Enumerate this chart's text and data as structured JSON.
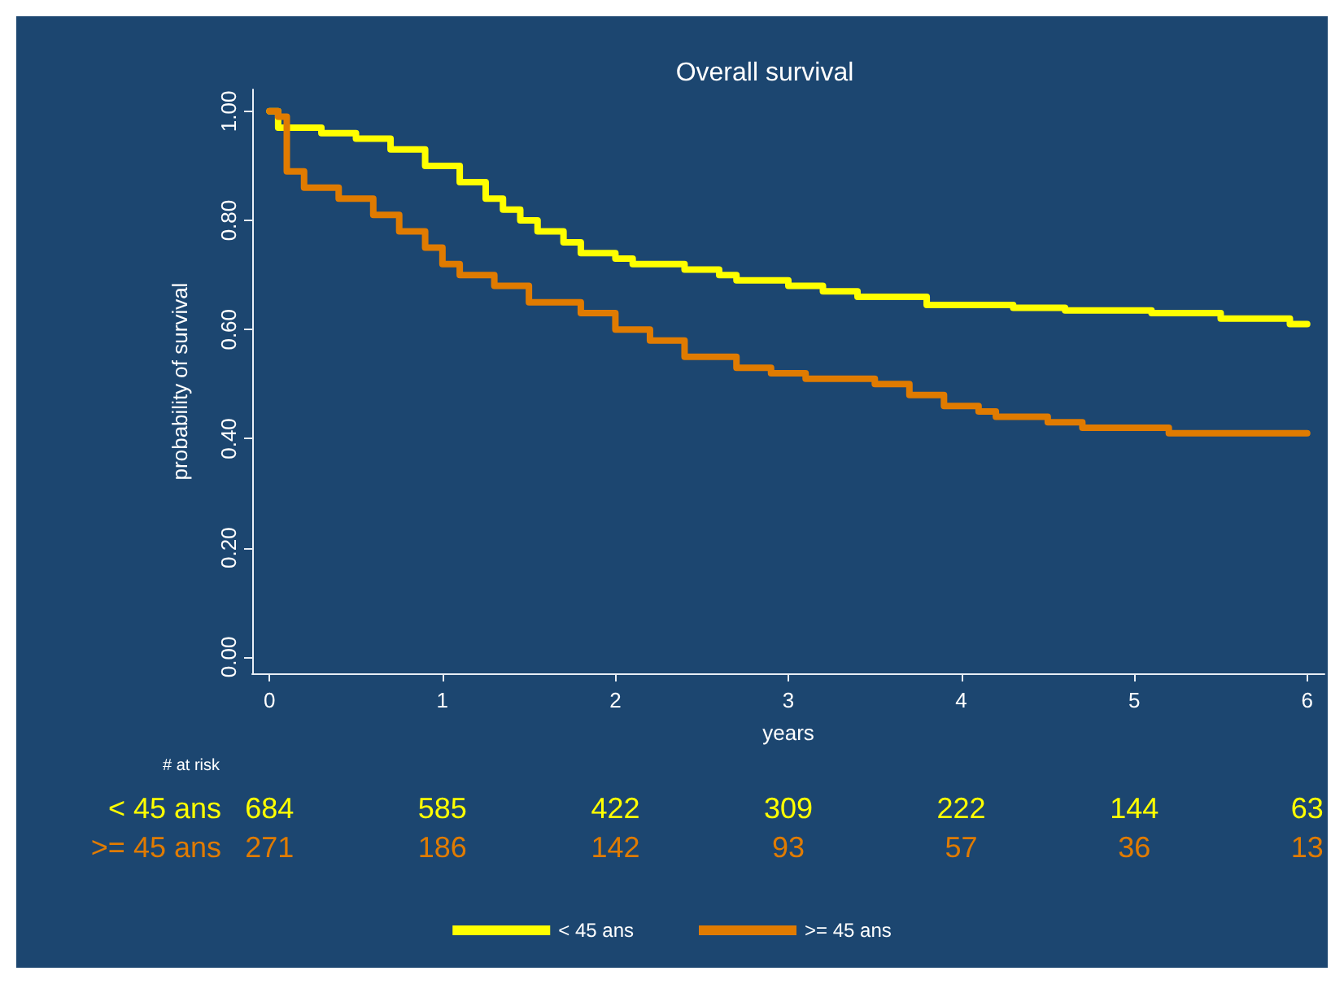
{
  "chart_data": {
    "type": "step",
    "title": "Overall survival",
    "xlabel": "years",
    "ylabel": "probability of survival",
    "xlim": [
      -0.1,
      6.1
    ],
    "xticks": [
      0,
      1,
      2,
      3,
      4,
      5,
      6
    ],
    "ylim": [
      -0.03,
      1.04
    ],
    "yticks": [
      {
        "value": 0,
        "label": "0.00"
      },
      {
        "value": 0.2,
        "label": "0.20"
      },
      {
        "value": 0.4,
        "label": "0.40"
      },
      {
        "value": 0.6,
        "label": "0.60"
      },
      {
        "value": 0.8,
        "label": "0.80"
      },
      {
        "value": 1,
        "label": "1.00"
      }
    ],
    "marker": "none",
    "legend": "bottom",
    "series": [
      {
        "name": "< 45 ans",
        "color": "#ffff00",
        "x": [
          0,
          0.05,
          0.3,
          0.5,
          0.7,
          0.9,
          1.1,
          1.25,
          1.35,
          1.45,
          1.55,
          1.7,
          1.8,
          2.0,
          2.1,
          2.4,
          2.6,
          2.7,
          3.0,
          3.2,
          3.4,
          3.8,
          4.3,
          4.6,
          5.1,
          5.5,
          5.9,
          6
        ],
        "values": [
          1,
          0.97,
          0.96,
          0.95,
          0.93,
          0.9,
          0.87,
          0.84,
          0.82,
          0.8,
          0.78,
          0.76,
          0.74,
          0.73,
          0.72,
          0.71,
          0.7,
          0.69,
          0.68,
          0.67,
          0.66,
          0.645,
          0.64,
          0.635,
          0.63,
          0.62,
          0.61,
          0.61
        ]
      },
      {
        "name": ">= 45 ans",
        "color": "#e07b00",
        "x": [
          0,
          0.05,
          0.1,
          0.2,
          0.4,
          0.6,
          0.75,
          0.9,
          1.0,
          1.1,
          1.3,
          1.5,
          1.8,
          2.0,
          2.2,
          2.4,
          2.7,
          2.9,
          3.1,
          3.5,
          3.7,
          3.9,
          4.1,
          4.2,
          4.5,
          4.7,
          5.2,
          6
        ],
        "values": [
          1,
          0.99,
          0.89,
          0.86,
          0.84,
          0.81,
          0.78,
          0.75,
          0.72,
          0.7,
          0.68,
          0.65,
          0.63,
          0.6,
          0.58,
          0.55,
          0.53,
          0.52,
          0.51,
          0.5,
          0.48,
          0.46,
          0.45,
          0.44,
          0.43,
          0.42,
          0.41,
          0.41
        ]
      }
    ],
    "annotations": [
      "# at risk",
      "< 45 ans",
      "684",
      "585",
      "422",
      "309",
      "222",
      "144",
      "63",
      ">= 45 ans",
      "271",
      "186",
      "142",
      "93",
      "57",
      "36",
      "13"
    ]
  }
}
